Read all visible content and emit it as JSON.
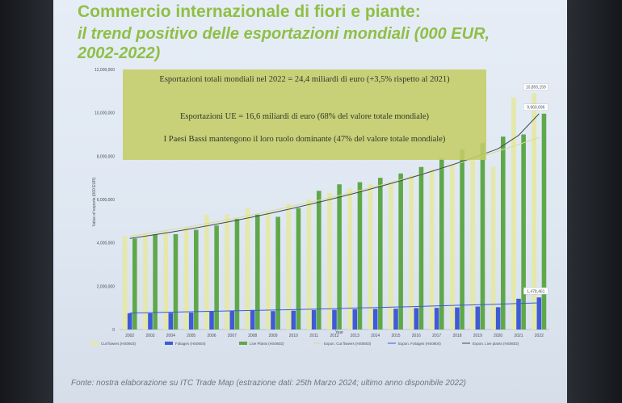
{
  "title_line1": "Commercio internazionale di fiori e piante:",
  "title_line2": "il trend positivo delle esportazioni mondiali (000 EUR, 2002-2022)",
  "infobox": {
    "line1": "Esportazioni totali mondiali nel 2022 = 24,4 miliardi di euro (+3,5% rispetto al 2021)",
    "line2": "Esportazioni UE = 16,6 miliardi di euro (68% del valore totale mondiale)",
    "line3": "I Paesi Bassi mantengono il loro ruolo dominante (47% del valore totale mondiale)"
  },
  "source_text": "Fonte: nostra elaborazione su ITC Trade Map (estrazione dati: 25th Marzo 2024; ultimo anno disponibile 2022)",
  "chart_data": {
    "type": "bar",
    "ylabel": "Value of exports (000 EUR)",
    "xlabel": "Year",
    "ylim": [
      0,
      12000000
    ],
    "yticks": [
      0,
      2000000,
      4000000,
      6000000,
      8000000,
      10000000,
      12000000
    ],
    "ytick_labels": [
      "0",
      "2,000,000",
      "4,000,000",
      "6,000,000",
      "8,000,000",
      "10,000,000",
      "12,000,000"
    ],
    "categories": [
      "2002",
      "2003",
      "2004",
      "2005",
      "2006",
      "2007",
      "2008",
      "2009",
      "2010",
      "2011",
      "2012",
      "2013",
      "2014",
      "2015",
      "2016",
      "2017",
      "2018",
      "2019",
      "2020",
      "2021",
      "2022"
    ],
    "series": [
      {
        "name": "Cut flowers (HS0603)",
        "color": "#e4e8a8",
        "kind": "bar",
        "values": [
          4300000,
          4400000,
          4500000,
          4700000,
          5300000,
          5300000,
          5600000,
          5400000,
          5800000,
          6000000,
          6300000,
          6500000,
          6700000,
          6800000,
          7100000,
          7400000,
          7600000,
          7900000,
          7500000,
          10700000,
          10900000
        ]
      },
      {
        "name": "Foliages (HS0604)",
        "color": "#3e5ad6",
        "kind": "bar",
        "values": [
          750000,
          750000,
          770000,
          780000,
          830000,
          870000,
          900000,
          850000,
          870000,
          900000,
          910000,
          940000,
          950000,
          960000,
          990000,
          1000000,
          1020000,
          1060000,
          1030000,
          1420000,
          1480000
        ]
      },
      {
        "name": "Live Plants (HS0602)",
        "color": "#5fa84a",
        "kind": "bar",
        "values": [
          4200000,
          4400000,
          4400000,
          4600000,
          4800000,
          5100000,
          5300000,
          5200000,
          5600000,
          6400000,
          6700000,
          6800000,
          7000000,
          7200000,
          7500000,
          7900000,
          8300000,
          8600000,
          8900000,
          9000000,
          9960000
        ]
      },
      {
        "name": "Expon. Cut flowers (HS0603)",
        "color": "#d9dd8a",
        "kind": "trend",
        "values": [
          4300000,
          4450000,
          4600000,
          4750000,
          4930000,
          5100000,
          5290000,
          5490000,
          5700000,
          5910000,
          6130000,
          6360000,
          6600000,
          6850000,
          7100000,
          7370000,
          7650000,
          7930000,
          8230000,
          8540000,
          8860000
        ]
      },
      {
        "name": "Expon. Foliages (HS0604)",
        "color": "#3e5ad6",
        "kind": "trend",
        "values": [
          760000,
          780000,
          800000,
          820000,
          840000,
          860000,
          880000,
          900000,
          920000,
          940000,
          960000,
          990000,
          1010000,
          1040000,
          1060000,
          1090000,
          1120000,
          1140000,
          1170000,
          1200000,
          1230000
        ]
      },
      {
        "name": "Expon. Live plants (HS0602)",
        "color": "#3f4a52",
        "kind": "trend",
        "values": [
          4200000,
          4340000,
          4490000,
          4650000,
          4820000,
          5000000,
          5190000,
          5390000,
          5600000,
          5820000,
          6050000,
          6290000,
          6540000,
          6800000,
          7080000,
          7370000,
          7680000,
          8000000,
          8340000,
          8960000,
          9960000
        ]
      }
    ],
    "data_labels": [
      {
        "series": "Cut flowers (HS0603)",
        "category": "2022",
        "text": "10,855,159"
      },
      {
        "series": "Live Plants (HS0602)",
        "category": "2022",
        "text": "9,960,696"
      },
      {
        "series": "Foliages (HS0604)",
        "category": "2022",
        "text": "1,478,461"
      }
    ],
    "legend_position": "bottom",
    "grid": false
  },
  "colors": {
    "title": "#8fbf45",
    "infobox_bg": "#c4cc66",
    "slide_bg": "#e3eaf4"
  }
}
